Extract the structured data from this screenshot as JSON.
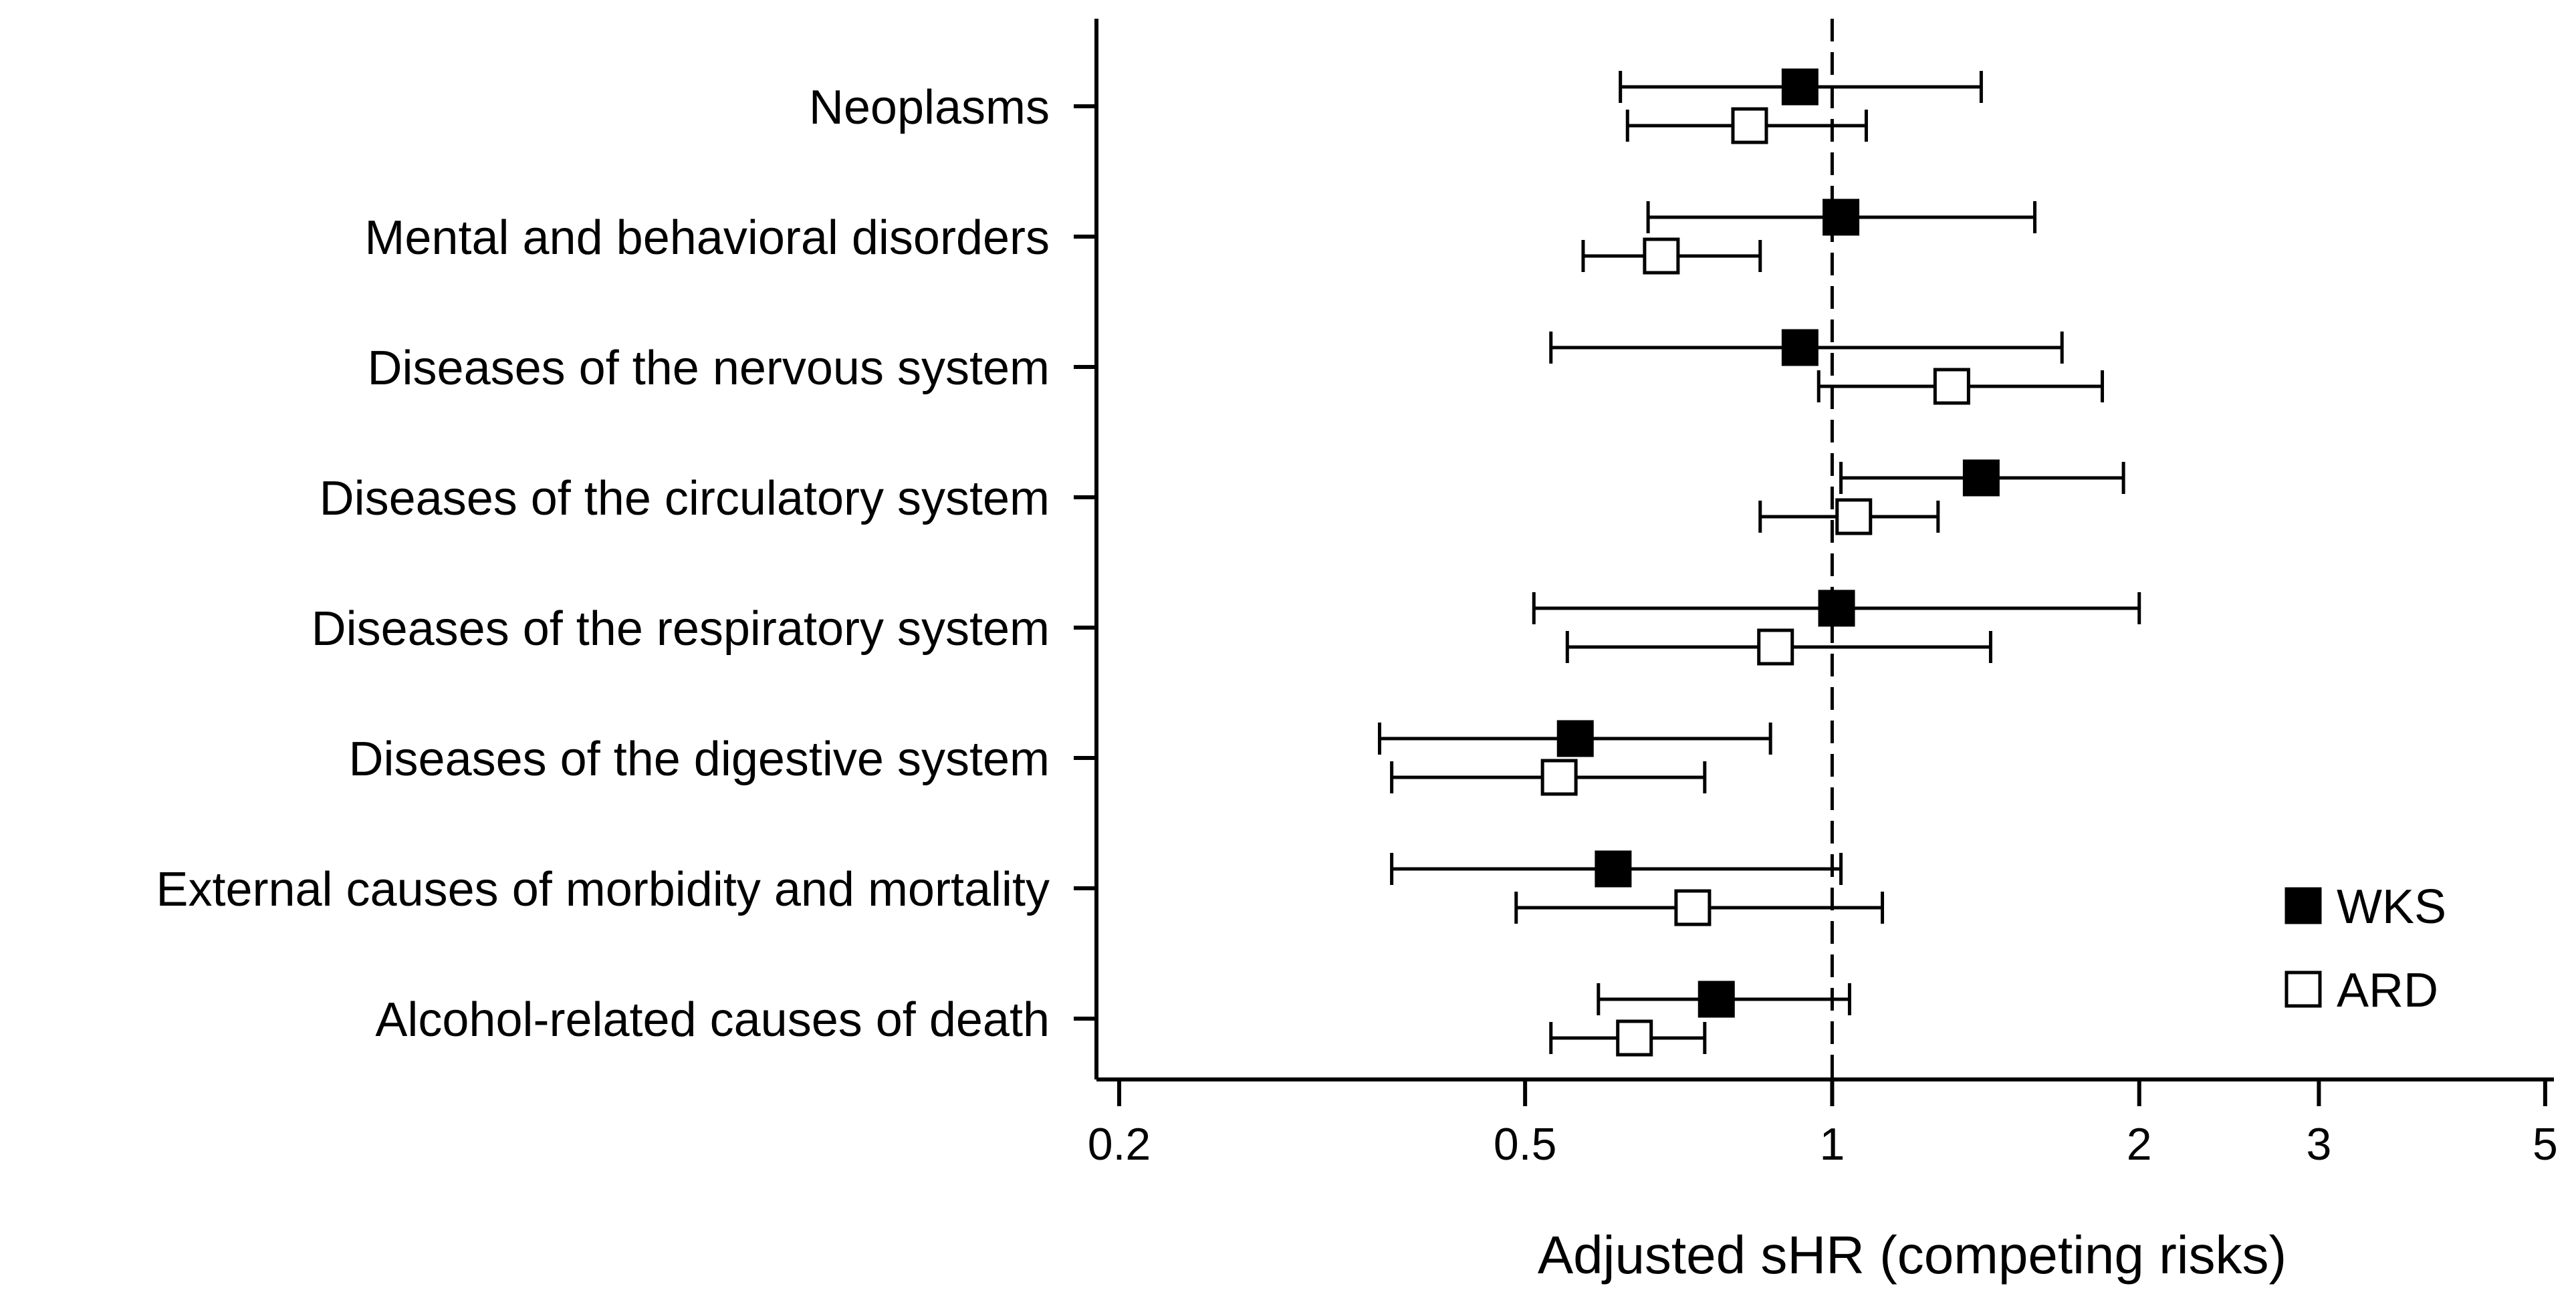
{
  "chart_data": {
    "type": "forest",
    "title": "",
    "xlabel": "Adjusted sHR (competing risks)",
    "ylabel": "",
    "x_scale": "log",
    "xlim": [
      0.19,
      5.1
    ],
    "xticks": [
      0.2,
      0.5,
      1,
      2,
      3,
      5
    ],
    "xtick_labels": [
      "0.2",
      "0.5",
      "1",
      "2",
      "3",
      "5"
    ],
    "reference_line": 1,
    "legend_position": "bottom-right",
    "categories": [
      "Neoplasms",
      "Mental and behavioral disorders",
      "Diseases of the nervous system",
      "Diseases of the circulatory system",
      "Diseases of the respiratory system",
      "Diseases of the digestive system",
      "External causes of morbidity and mortality",
      "Alcohol-related causes of death"
    ],
    "series": [
      {
        "name": "WKS",
        "marker": "filled-square",
        "color": "#000000",
        "estimates": [
          0.93,
          1.02,
          0.93,
          1.4,
          1.01,
          0.56,
          0.61,
          0.77
        ],
        "lower": [
          0.62,
          0.66,
          0.53,
          1.02,
          0.51,
          0.36,
          0.37,
          0.59
        ],
        "upper": [
          1.4,
          1.58,
          1.68,
          1.93,
          2.0,
          0.87,
          1.02,
          1.04
        ]
      },
      {
        "name": "ARD",
        "marker": "open-square",
        "color": "#000000",
        "estimates": [
          0.83,
          0.68,
          1.31,
          1.05,
          0.88,
          0.54,
          0.73,
          0.64
        ],
        "lower": [
          0.63,
          0.57,
          0.97,
          0.85,
          0.55,
          0.37,
          0.49,
          0.53
        ],
        "upper": [
          1.08,
          0.85,
          1.84,
          1.27,
          1.43,
          0.75,
          1.12,
          0.75
        ]
      }
    ]
  }
}
